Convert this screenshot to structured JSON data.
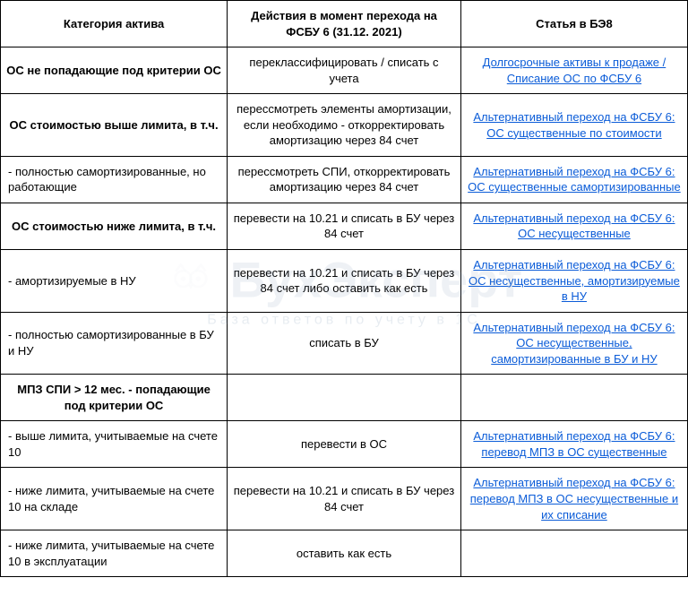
{
  "headers": {
    "col1": "Категория актива",
    "col2": "Действия в момент перехода на ФСБУ 6 (31.12. 2021)",
    "col3": "Статья в БЭ8"
  },
  "rows": [
    {
      "c1": "ОС не попадающие под критерии ОС",
      "c1_bold": true,
      "c1_left": false,
      "c2": "переклассифицировать / списать с учета",
      "c3": "Долгосрочные активы к продаже / Списание ОС по ФСБУ 6",
      "c3_link": true
    },
    {
      "c1": "ОС стоимостью выше лимита, в т.ч.",
      "c1_bold": true,
      "c1_left": false,
      "c2": "перессмотреть элементы амортизации, если необходимо -  откорректировать амортизацию через 84 счет",
      "c3": "Альтернативный переход на ФСБУ 6: ОС существенные по стоимости",
      "c3_link": true
    },
    {
      "c1": " - полностью самортизированные, но работающие",
      "c1_bold": false,
      "c1_left": true,
      "c2": "перессмотреть СПИ, откорректировать амортизацию через 84 счет",
      "c3": "Альтернативный переход на ФСБУ 6: ОС существенные самортизированные",
      "c3_link": true
    },
    {
      "c1": "ОС стоимостью ниже лимита, в т.ч.",
      "c1_bold": true,
      "c1_left": false,
      "c2": "перевести на 10.21 и списать в БУ через 84 счет",
      "c3": "Альтернативный переход на ФСБУ 6: ОС несущественные",
      "c3_link": true
    },
    {
      "c1": "- амортизируемые в НУ",
      "c1_bold": false,
      "c1_left": true,
      "c2": "перевести на 10.21 и списать в БУ через 84 счет либо оставить как есть",
      "c3": "Альтернативный переход на ФСБУ 6: ОС несущественные, амортизируемые в НУ",
      "c3_link": true
    },
    {
      "c1": "- полностью самортизированные в БУ и НУ",
      "c1_bold": false,
      "c1_left": true,
      "c2": "списать в БУ",
      "c3": "Альтернативный переход на ФСБУ 6: ОС несущественные, самортизированные в БУ и НУ",
      "c3_link": true
    },
    {
      "c1": "МПЗ СПИ > 12 мес. - попадающие под критерии ОС",
      "c1_bold": true,
      "c1_left": false,
      "c2": "",
      "c3": "",
      "c3_link": false
    },
    {
      "c1": "- выше лимита, учитываемые на счете 10",
      "c1_bold": false,
      "c1_left": true,
      "c2": "перевести в ОС",
      "c3": "Альтернативный переход на ФСБУ 6: перевод МПЗ в ОС существенные",
      "c3_link": true
    },
    {
      "c1": "- ниже лимита, учитываемые на счете 10 на складе",
      "c1_bold": false,
      "c1_left": true,
      "c2": "перевести на 10.21 и списать в БУ через 84 счет",
      "c3": "Альтернативный переход на ФСБУ 6: перевод МПЗ в ОС несущественные и их списание",
      "c3_link": true
    },
    {
      "c1": "-  ниже лимита, учитываемые на счете 10 в эксплуатации",
      "c1_bold": false,
      "c1_left": true,
      "c2": "оставить как есть",
      "c3": "",
      "c3_link": false
    }
  ],
  "watermark": {
    "main": "БухЭксперт",
    "sub": "База ответов по учету в 1С"
  },
  "colors": {
    "border": "#000000",
    "link": "#0b5cd8",
    "watermark": "rgba(120,150,180,0.13)"
  }
}
